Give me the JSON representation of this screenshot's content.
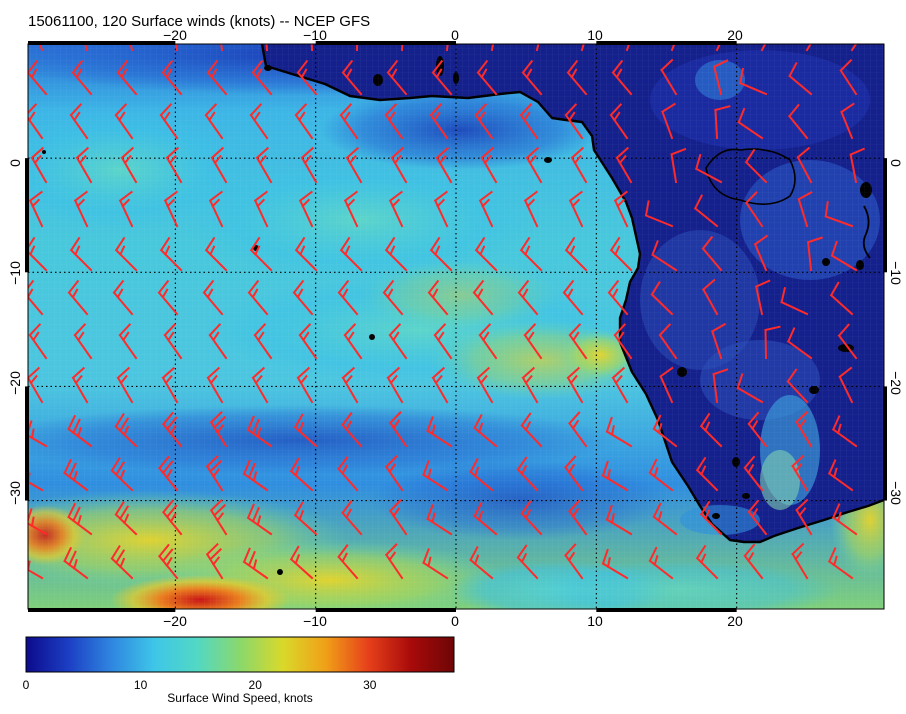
{
  "title": "15061100, 120 Surface winds (knots) -- NCEP GFS",
  "x_axis": {
    "top_ticks": [
      "−20",
      "−10",
      "0",
      "10",
      "20"
    ],
    "bottom_ticks": [
      "−20",
      "−10",
      "0",
      "10",
      "20"
    ],
    "tick_lon_values": [
      -20,
      -10,
      0,
      10,
      20
    ]
  },
  "y_axis": {
    "left_ticks": [
      "0",
      "−10",
      "−20",
      "−30"
    ],
    "right_ticks": [
      "0",
      "−10",
      "−20",
      "−30"
    ],
    "tick_lat_values": [
      0,
      -10,
      -20,
      -30
    ]
  },
  "extent": {
    "lon_min": -30.5,
    "lon_max": 30.5,
    "lat_max": 10,
    "lat_min": -39.5
  },
  "colorbar": {
    "label": "Surface Wind Speed, knots",
    "ticks": [
      "0",
      "10",
      "20",
      "30"
    ],
    "tick_values": [
      0,
      10,
      20,
      30
    ],
    "min": 0,
    "max": 38,
    "colors": [
      "#0c0a8c",
      "#1c3fc4",
      "#2f86e0",
      "#3ec6e8",
      "#52d8c4",
      "#8ad86c",
      "#d9d92a",
      "#f0a018",
      "#e6401a",
      "#a80a0a",
      "#6e0606"
    ]
  },
  "colors": {
    "barb": "#ff2a2a",
    "coast": "#000000",
    "land": "#14208c",
    "gridline": "#000000"
  }
}
